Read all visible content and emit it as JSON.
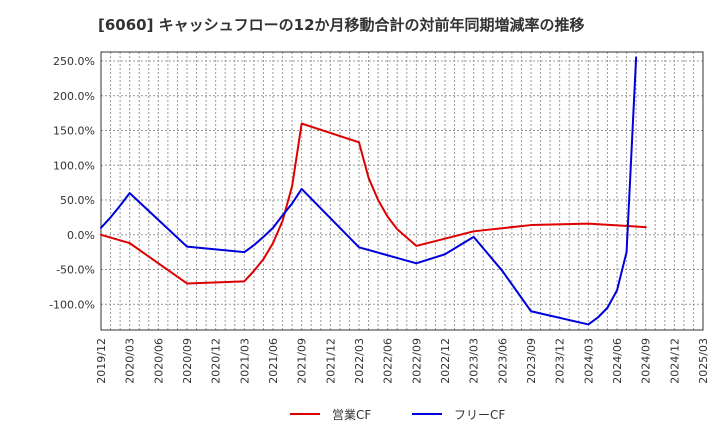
{
  "chart_data": {
    "type": "line",
    "title": "[6060]  キャッシュフローの12か月移動合計の対前年同期増減率の推移",
    "xlabel": "",
    "ylabel": "",
    "x_ticks": [
      "2019/12",
      "2020/03",
      "2020/06",
      "2020/09",
      "2020/12",
      "2021/03",
      "2021/06",
      "2021/09",
      "2021/12",
      "2022/03",
      "2022/06",
      "2022/09",
      "2022/12",
      "2023/03",
      "2023/06",
      "2023/09",
      "2023/12",
      "2024/03",
      "2024/06",
      "2024/09",
      "2024/12",
      "2025/03"
    ],
    "y_ticks": [
      "-100.0%",
      "-50.0%",
      "0.0%",
      "50.0%",
      "100.0%",
      "150.0%",
      "200.0%",
      "250.0%"
    ],
    "y_tick_values": [
      -100,
      -50,
      0,
      50,
      100,
      150,
      200,
      250
    ],
    "ylim": [
      -137,
      263
    ],
    "grid": true,
    "legend_position": "bottom-center",
    "series": [
      {
        "name": "営業CF",
        "color": "#dd0000",
        "points": [
          [
            "2019/12",
            0
          ],
          [
            "2020/03",
            -12
          ],
          [
            "2020/09",
            -70
          ],
          [
            "2021/03",
            -67
          ],
          [
            "2021/04",
            -52
          ],
          [
            "2021/05",
            -35
          ],
          [
            "2021/06",
            -12
          ],
          [
            "2021/07",
            20
          ],
          [
            "2021/08",
            70
          ],
          [
            "2021/09",
            160
          ],
          [
            "2022/03",
            133
          ],
          [
            "2022/04",
            82
          ],
          [
            "2022/05",
            50
          ],
          [
            "2022/06",
            26
          ],
          [
            "2022/07",
            8
          ],
          [
            "2022/09",
            -16
          ],
          [
            "2023/03",
            5
          ],
          [
            "2023/09",
            14
          ],
          [
            "2024/03",
            16
          ],
          [
            "2024/09",
            11
          ]
        ]
      },
      {
        "name": "フリーCF",
        "color": "#0000dd",
        "points": [
          [
            "2019/12",
            10
          ],
          [
            "2020/01",
            25
          ],
          [
            "2020/02",
            42
          ],
          [
            "2020/03",
            60
          ],
          [
            "2020/09",
            -17
          ],
          [
            "2021/03",
            -25
          ],
          [
            "2021/04",
            -15
          ],
          [
            "2021/05",
            -3
          ],
          [
            "2021/06",
            10
          ],
          [
            "2021/07",
            28
          ],
          [
            "2021/08",
            45
          ],
          [
            "2021/09",
            66
          ],
          [
            "2022/03",
            -18
          ],
          [
            "2022/09",
            -41
          ],
          [
            "2022/12",
            -28
          ],
          [
            "2023/03",
            -3
          ],
          [
            "2023/06",
            -52
          ],
          [
            "2023/09",
            -110
          ],
          [
            "2024/03",
            -129
          ],
          [
            "2024/04",
            -119
          ],
          [
            "2024/05",
            -105
          ],
          [
            "2024/06",
            -80
          ],
          [
            "2024/07",
            -25
          ],
          [
            "2024/08",
            255
          ]
        ]
      }
    ]
  }
}
